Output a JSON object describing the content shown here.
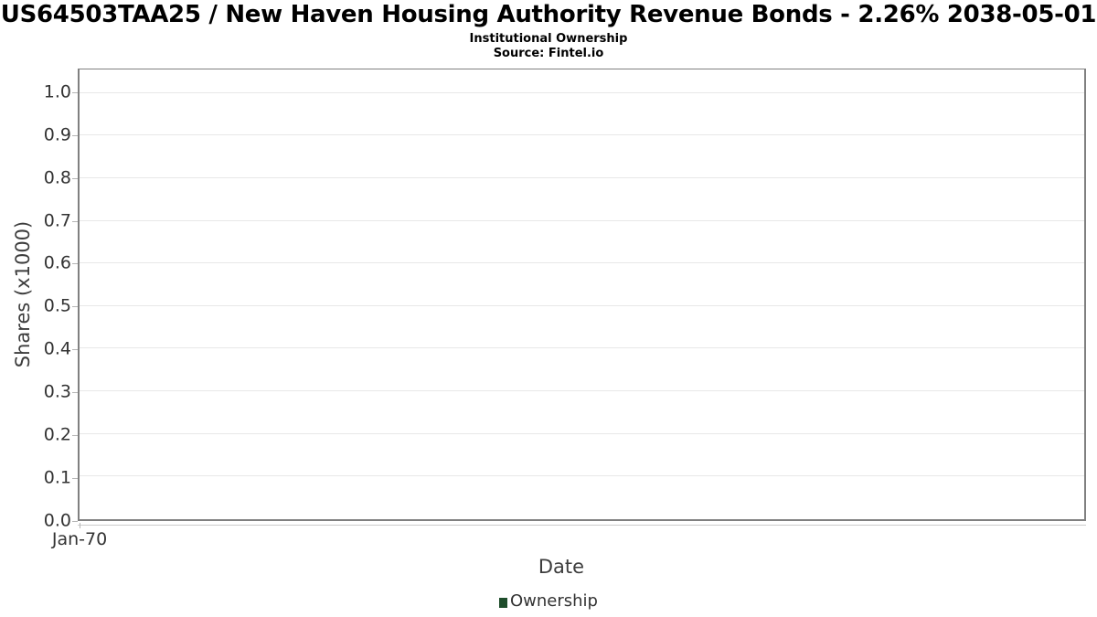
{
  "header": {
    "title": "US64503TAA25 / New Haven Housing Authority Revenue Bonds - 2.26% 2038-05-01",
    "subtitle": "Institutional Ownership",
    "source": "Source: Fintel.io"
  },
  "chart_data": {
    "type": "bar",
    "title": "US64503TAA25 / New Haven Housing Authority Revenue Bonds - 2.26% 2038-05-01",
    "subtitle": "Institutional Ownership",
    "source_note": "Source: Fintel.io",
    "xlabel": "Date",
    "ylabel": "Shares (x1000)",
    "x_tick_labels": [
      "Jan-70"
    ],
    "y_ticks": [
      0.0,
      0.1,
      0.2,
      0.3,
      0.4,
      0.5,
      0.6,
      0.7,
      0.8,
      0.9,
      1.0
    ],
    "y_tick_labels": [
      "0.0",
      "0.1",
      "0.2",
      "0.3",
      "0.4",
      "0.5",
      "0.6",
      "0.7",
      "0.8",
      "0.9",
      "1.0"
    ],
    "ylim": [
      0,
      1.055
    ],
    "grid": "horizontal",
    "categories": [],
    "series": [
      {
        "name": "Ownership",
        "color": "#1e4d2b",
        "values": []
      }
    ],
    "legend": {
      "position": "bottom",
      "entries": [
        {
          "label": "Ownership",
          "color": "#1e4d2b"
        }
      ]
    }
  }
}
